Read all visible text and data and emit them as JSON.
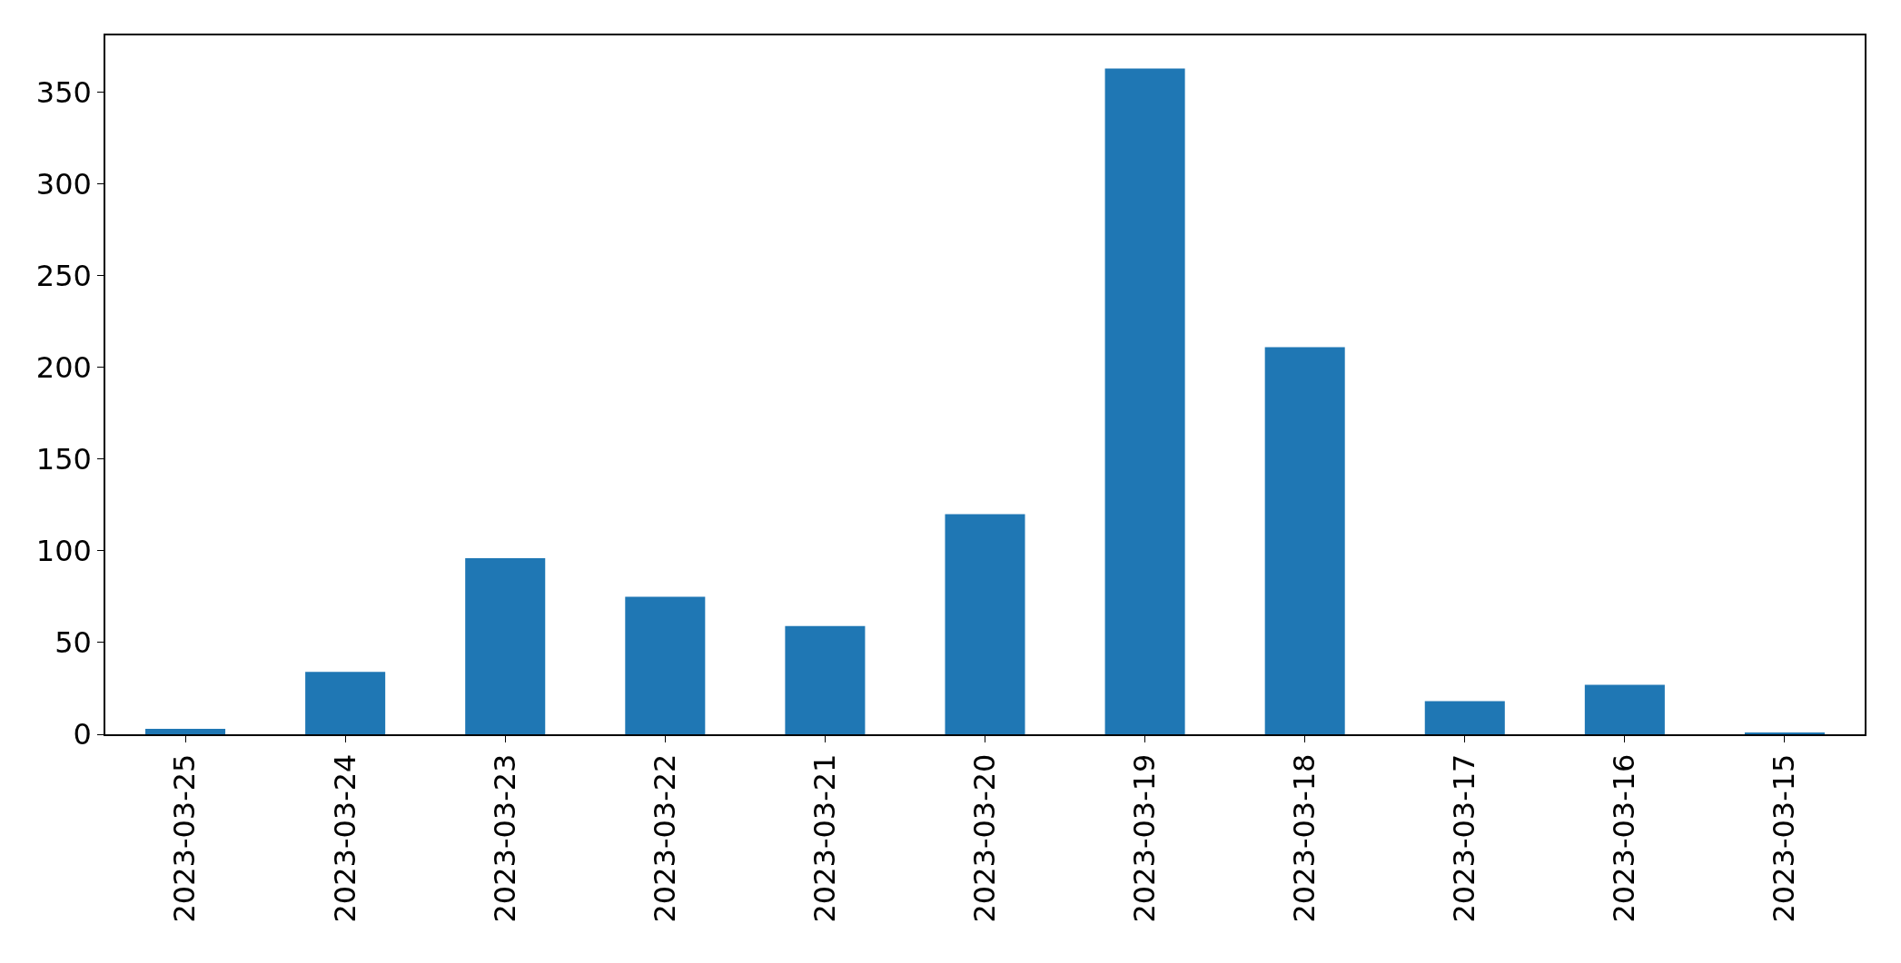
{
  "chart_data": {
    "type": "bar",
    "categories": [
      "2023-03-25",
      "2023-03-24",
      "2023-03-23",
      "2023-03-22",
      "2023-03-21",
      "2023-03-20",
      "2023-03-19",
      "2023-03-18",
      "2023-03-17",
      "2023-03-16",
      "2023-03-15"
    ],
    "values": [
      3,
      34,
      96,
      75,
      59,
      120,
      363,
      211,
      18,
      27,
      1
    ],
    "color": "#1f77b4",
    "ylim": [
      0,
      381
    ],
    "yticks": [
      0,
      50,
      100,
      150,
      200,
      250,
      300,
      350
    ],
    "legend": false
  }
}
